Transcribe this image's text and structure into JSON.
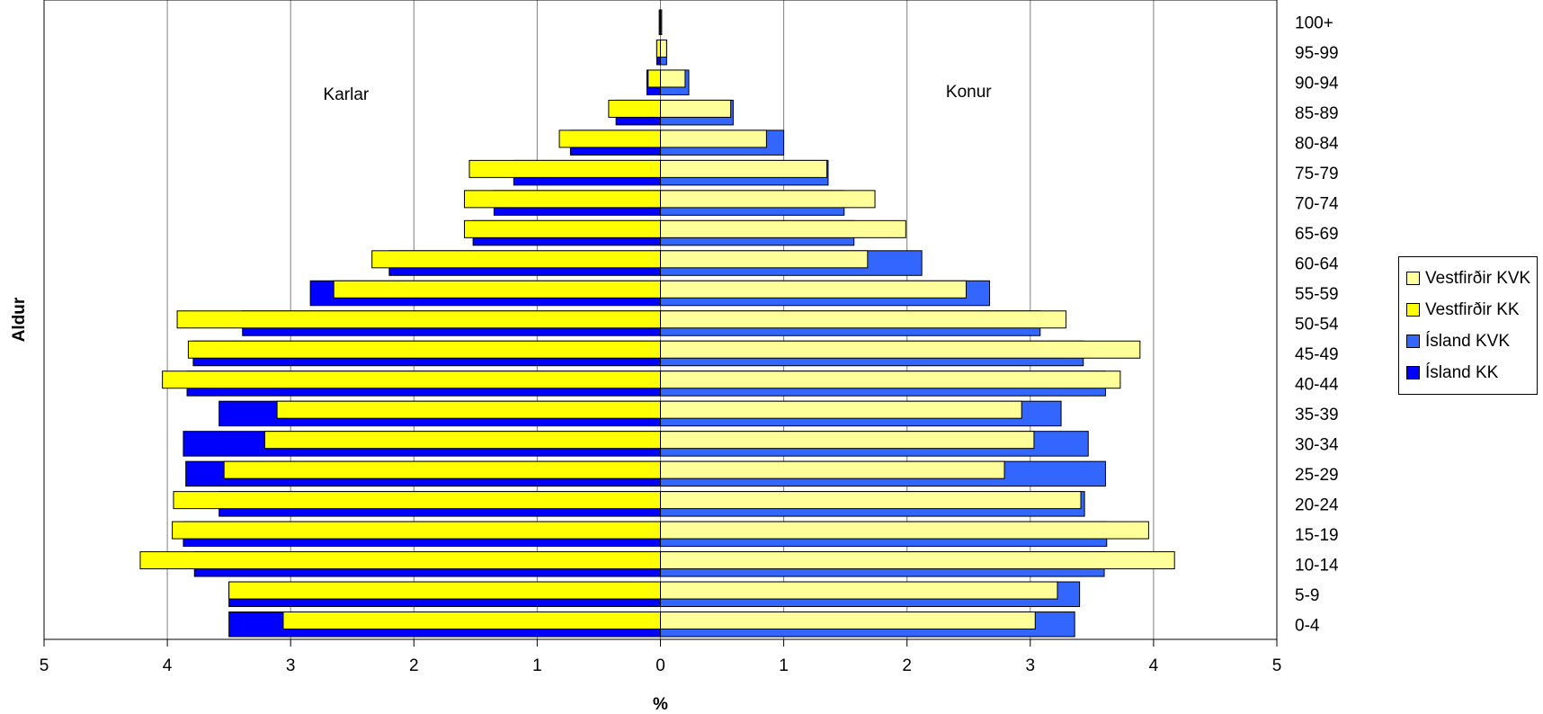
{
  "chart_data": {
    "type": "bar",
    "orientation": "horizontal-population-pyramid",
    "categories": [
      "0-4",
      "5-9",
      "10-14",
      "15-19",
      "20-24",
      "25-29",
      "30-34",
      "35-39",
      "40-44",
      "45-49",
      "50-54",
      "55-59",
      "60-64",
      "65-69",
      "70-74",
      "75-79",
      "80-84",
      "85-89",
      "90-94",
      "95-99",
      "100+"
    ],
    "series": [
      {
        "name": "Vestfirðir KVK",
        "side": "right",
        "color": "#ffff99",
        "values": [
          3.04,
          3.22,
          4.17,
          3.96,
          3.41,
          2.79,
          3.03,
          2.93,
          3.73,
          3.89,
          3.29,
          2.48,
          1.68,
          1.99,
          1.74,
          1.35,
          0.86,
          0.57,
          0.2,
          0.05,
          0.0
        ]
      },
      {
        "name": "Vestfirðir KK",
        "side": "left",
        "color": "#ffff00",
        "values": [
          3.06,
          3.5,
          4.22,
          3.96,
          3.95,
          3.54,
          3.21,
          3.11,
          4.04,
          3.83,
          3.92,
          2.65,
          2.34,
          1.59,
          1.59,
          1.55,
          0.82,
          0.42,
          0.1,
          0.03,
          0.0
        ]
      },
      {
        "name": "Ísland KVK",
        "side": "right",
        "color": "#3366ff",
        "values": [
          3.36,
          3.4,
          3.6,
          3.62,
          3.44,
          3.61,
          3.47,
          3.25,
          3.61,
          3.43,
          3.08,
          2.67,
          2.12,
          1.57,
          1.49,
          1.36,
          1.0,
          0.59,
          0.23,
          0.05,
          0.01
        ]
      },
      {
        "name": "Ísland KK",
        "side": "left",
        "color": "#0000ff",
        "values": [
          3.5,
          3.5,
          3.78,
          3.87,
          3.58,
          3.85,
          3.87,
          3.58,
          3.84,
          3.79,
          3.39,
          2.84,
          2.2,
          1.52,
          1.35,
          1.19,
          0.73,
          0.36,
          0.11,
          0.03,
          0.01
        ]
      }
    ],
    "xlabel": "%",
    "ylabel": "Aldur",
    "xlim": [
      -5,
      5
    ],
    "xticks": [
      "5",
      "4",
      "3",
      "2",
      "1",
      "0",
      "1",
      "2",
      "3",
      "4",
      "5"
    ],
    "annotations": {
      "left": "Karlar",
      "right": "Konur"
    },
    "grid": "vertical",
    "legend_position": "right"
  }
}
